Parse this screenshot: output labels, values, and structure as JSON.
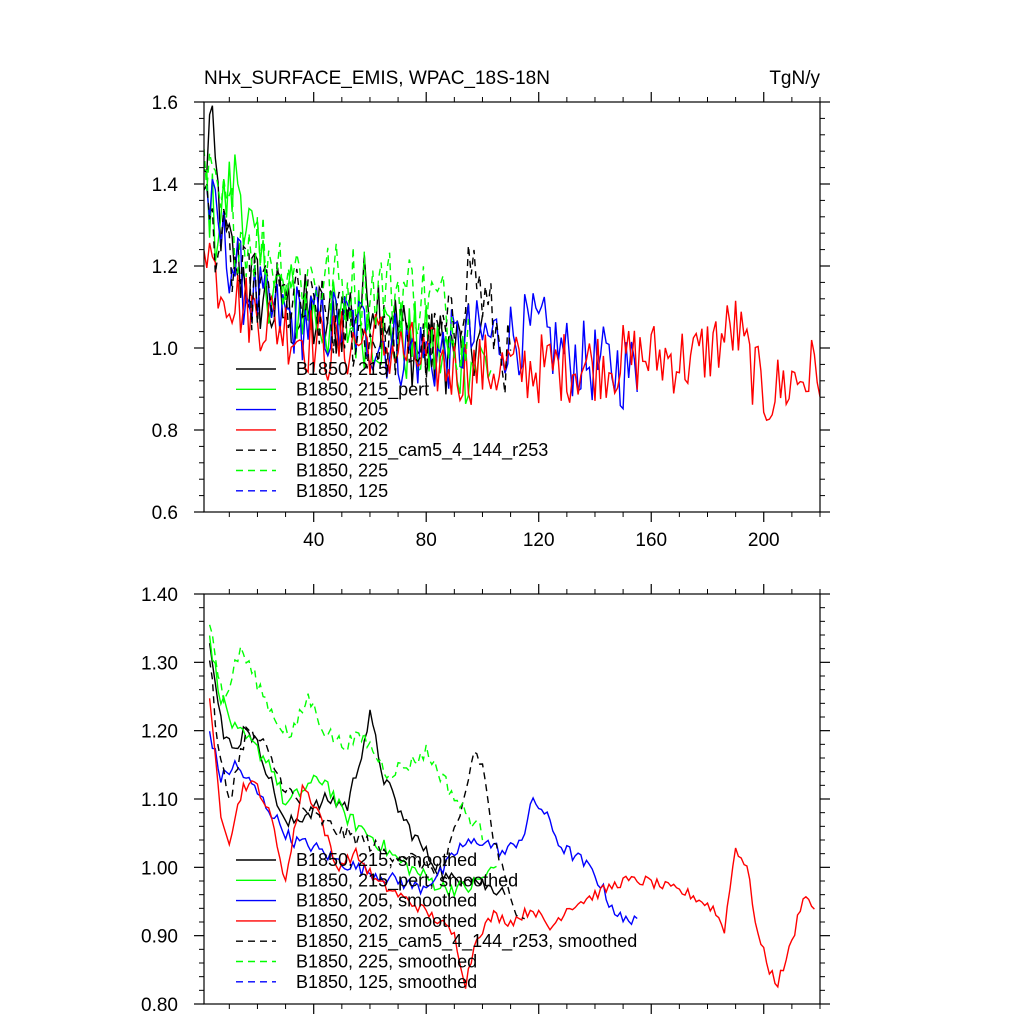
{
  "colors": {
    "black": "#000000",
    "green": "#00ff00",
    "blue": "#0000ff",
    "red": "#ff0000"
  },
  "chart_data": [
    {
      "type": "line",
      "title": "NHx_SURFACE_EMIS, WPAC_18S-18N",
      "units": "TgN/y",
      "xlabel": "",
      "ylabel": "",
      "xlim": [
        1,
        220
      ],
      "ylim": [
        0.6,
        1.6
      ],
      "x_ticks": [
        40,
        80,
        120,
        160,
        200
      ],
      "x_tick_labels": [
        "40",
        "80",
        "120",
        "160",
        "200"
      ],
      "y_ticks": [
        0.6,
        0.8,
        1.0,
        1.2,
        1.4,
        1.6
      ],
      "y_tick_labels": [
        "0.6",
        "0.8",
        "1.0",
        "1.2",
        "1.4",
        "1.6"
      ],
      "legend_position": "bottom-left",
      "series": [
        {
          "name": "B1850, 215",
          "color": "black",
          "dash": "solid",
          "length": 100,
          "anchors": [
            [
              1,
              1.4
            ],
            [
              3,
              1.54
            ],
            [
              8,
              1.25
            ],
            [
              15,
              1.18
            ],
            [
              25,
              1.1
            ],
            [
              35,
              1.08
            ],
            [
              45,
              1.06
            ],
            [
              55,
              1.1
            ],
            [
              60,
              1.15
            ],
            [
              70,
              1.04
            ],
            [
              80,
              0.98
            ],
            [
              90,
              1.0
            ],
            [
              100,
              1.0
            ]
          ],
          "noise": 0.11
        },
        {
          "name": "B1850, 215_pert",
          "color": "green",
          "dash": "solid",
          "length": 103,
          "anchors": [
            [
              1,
              1.42
            ],
            [
              5,
              1.3
            ],
            [
              13,
              1.42
            ],
            [
              20,
              1.2
            ],
            [
              30,
              1.12
            ],
            [
              40,
              1.08
            ],
            [
              50,
              1.05
            ],
            [
              60,
              1.06
            ],
            [
              70,
              1.02
            ],
            [
              80,
              1.0
            ],
            [
              90,
              0.97
            ],
            [
              103,
              0.96
            ]
          ],
          "noise": 0.11
        },
        {
          "name": "B1850, 205",
          "color": "blue",
          "dash": "solid",
          "length": 155,
          "anchors": [
            [
              1,
              1.4
            ],
            [
              5,
              1.3
            ],
            [
              15,
              1.15
            ],
            [
              25,
              1.08
            ],
            [
              40,
              1.06
            ],
            [
              55,
              1.05
            ],
            [
              70,
              1.0
            ],
            [
              85,
              0.98
            ],
            [
              95,
              1.02
            ],
            [
              110,
              1.03
            ],
            [
              120,
              1.04
            ],
            [
              130,
              0.98
            ],
            [
              140,
              0.96
            ],
            [
              155,
              0.94
            ]
          ],
          "noise": 0.1
        },
        {
          "name": "B1850, 202",
          "color": "red",
          "dash": "solid",
          "length": 220,
          "anchors": [
            [
              1,
              1.3
            ],
            [
              5,
              1.18
            ],
            [
              15,
              1.1
            ],
            [
              30,
              1.05
            ],
            [
              45,
              1.0
            ],
            [
              60,
              1.02
            ],
            [
              75,
              0.98
            ],
            [
              90,
              0.95
            ],
            [
              105,
              0.95
            ],
            [
              120,
              0.95
            ],
            [
              140,
              0.96
            ],
            [
              160,
              0.98
            ],
            [
              175,
              0.97
            ],
            [
              190,
              1.05
            ],
            [
              200,
              0.88
            ],
            [
              210,
              0.92
            ],
            [
              220,
              0.95
            ]
          ],
          "noise": 0.09
        },
        {
          "name": "B1850, 215_cam5_4_144_r253",
          "color": "black",
          "dash": "dashed",
          "length": 110,
          "anchors": [
            [
              1,
              1.35
            ],
            [
              5,
              1.28
            ],
            [
              15,
              1.15
            ],
            [
              25,
              1.12
            ],
            [
              35,
              1.1
            ],
            [
              50,
              1.05
            ],
            [
              65,
              1.02
            ],
            [
              80,
              0.99
            ],
            [
              90,
              1.05
            ],
            [
              96,
              1.22
            ],
            [
              100,
              1.12
            ],
            [
              110,
              0.95
            ]
          ],
          "noise": 0.1
        },
        {
          "name": "B1850, 225",
          "color": "green",
          "dash": "dashed",
          "length": 95,
          "anchors": [
            [
              1,
              1.42
            ],
            [
              5,
              1.35
            ],
            [
              15,
              1.28
            ],
            [
              30,
              1.2
            ],
            [
              45,
              1.16
            ],
            [
              60,
              1.15
            ],
            [
              75,
              1.14
            ],
            [
              85,
              1.1
            ],
            [
              95,
              1.02
            ]
          ],
          "noise": 0.11
        },
        {
          "name": "B1850, 125",
          "color": "blue",
          "dash": "dashed",
          "length": 0,
          "anchors": [],
          "noise": 0
        }
      ]
    },
    {
      "type": "line",
      "title": "",
      "xlabel": "",
      "ylabel": "",
      "xlim": [
        1,
        220
      ],
      "ylim": [
        0.8,
        1.4
      ],
      "x_ticks": [
        40,
        80,
        120,
        160,
        200
      ],
      "x_tick_labels": [],
      "y_ticks": [
        0.8,
        0.9,
        1.0,
        1.1,
        1.2,
        1.3,
        1.4
      ],
      "y_tick_labels": [
        "0.80",
        "0.90",
        "1.00",
        "1.10",
        "1.20",
        "1.30",
        "1.40"
      ],
      "legend_position": "bottom-left",
      "series": [
        {
          "name": "B1850, 215, smoothed",
          "color": "black",
          "dash": "solid",
          "length": 108,
          "anchors": [
            [
              3,
              1.34
            ],
            [
              8,
              1.19
            ],
            [
              12,
              1.17
            ],
            [
              16,
              1.21
            ],
            [
              22,
              1.16
            ],
            [
              30,
              1.06
            ],
            [
              38,
              1.08
            ],
            [
              45,
              1.1
            ],
            [
              52,
              1.09
            ],
            [
              57,
              1.17
            ],
            [
              60,
              1.22
            ],
            [
              65,
              1.13
            ],
            [
              72,
              1.07
            ],
            [
              80,
              1.02
            ],
            [
              88,
              0.98
            ],
            [
              95,
              0.99
            ],
            [
              102,
              0.97
            ],
            [
              108,
              0.97
            ]
          ],
          "noise": 0.012
        },
        {
          "name": "B1850, 215_pert, smoothed",
          "color": "green",
          "dash": "solid",
          "length": 105,
          "anchors": [
            [
              3,
              1.33
            ],
            [
              7,
              1.25
            ],
            [
              12,
              1.2
            ],
            [
              18,
              1.18
            ],
            [
              25,
              1.15
            ],
            [
              30,
              1.09
            ],
            [
              38,
              1.12
            ],
            [
              44,
              1.13
            ],
            [
              50,
              1.08
            ],
            [
              56,
              1.06
            ],
            [
              62,
              1.04
            ],
            [
              70,
              1.01
            ],
            [
              78,
              0.99
            ],
            [
              86,
              0.97
            ],
            [
              95,
              0.97
            ],
            [
              105,
              1.0
            ]
          ],
          "noise": 0.012
        },
        {
          "name": "B1850, 205, smoothed",
          "color": "blue",
          "dash": "solid",
          "length": 155,
          "anchors": [
            [
              3,
              1.2
            ],
            [
              7,
              1.13
            ],
            [
              12,
              1.15
            ],
            [
              18,
              1.12
            ],
            [
              25,
              1.08
            ],
            [
              32,
              1.04
            ],
            [
              40,
              1.03
            ],
            [
              48,
              1.01
            ],
            [
              55,
              1.0
            ],
            [
              62,
              0.99
            ],
            [
              70,
              0.98
            ],
            [
              78,
              0.97
            ],
            [
              85,
              0.99
            ],
            [
              92,
              1.03
            ],
            [
              100,
              1.04
            ],
            [
              108,
              1.02
            ],
            [
              115,
              1.05
            ],
            [
              118,
              1.1
            ],
            [
              122,
              1.08
            ],
            [
              128,
              1.03
            ],
            [
              135,
              1.01
            ],
            [
              140,
              0.99
            ],
            [
              145,
              0.95
            ],
            [
              150,
              0.92
            ],
            [
              155,
              0.93
            ]
          ],
          "noise": 0.01
        },
        {
          "name": "B1850, 202, smoothed",
          "color": "red",
          "dash": "solid",
          "length": 218,
          "anchors": [
            [
              3,
              1.24
            ],
            [
              7,
              1.08
            ],
            [
              10,
              1.04
            ],
            [
              15,
              1.12
            ],
            [
              20,
              1.12
            ],
            [
              25,
              1.07
            ],
            [
              30,
              0.98
            ],
            [
              36,
              1.12
            ],
            [
              42,
              1.08
            ],
            [
              48,
              1.0
            ],
            [
              55,
              1.02
            ],
            [
              62,
              0.98
            ],
            [
              70,
              0.96
            ],
            [
              78,
              0.94
            ],
            [
              85,
              0.92
            ],
            [
              90,
              0.9
            ],
            [
              94,
              0.83
            ],
            [
              98,
              0.9
            ],
            [
              104,
              0.93
            ],
            [
              110,
              0.92
            ],
            [
              118,
              0.94
            ],
            [
              124,
              0.91
            ],
            [
              130,
              0.94
            ],
            [
              140,
              0.96
            ],
            [
              150,
              0.98
            ],
            [
              158,
              0.98
            ],
            [
              166,
              0.97
            ],
            [
              174,
              0.96
            ],
            [
              182,
              0.94
            ],
            [
              186,
              0.91
            ],
            [
              190,
              1.03
            ],
            [
              194,
              1.0
            ],
            [
              198,
              0.9
            ],
            [
              202,
              0.85
            ],
            [
              205,
              0.83
            ],
            [
              210,
              0.89
            ],
            [
              214,
              0.96
            ],
            [
              218,
              0.94
            ]
          ],
          "noise": 0.008
        },
        {
          "name": "B1850, 215_cam5_4_144_r253, smoothed",
          "color": "black",
          "dash": "dashed",
          "length": 115,
          "anchors": [
            [
              3,
              1.31
            ],
            [
              6,
              1.17
            ],
            [
              10,
              1.1
            ],
            [
              16,
              1.2
            ],
            [
              22,
              1.18
            ],
            [
              28,
              1.13
            ],
            [
              35,
              1.09
            ],
            [
              42,
              1.07
            ],
            [
              50,
              1.05
            ],
            [
              58,
              1.04
            ],
            [
              65,
              1.02
            ],
            [
              72,
              1.02
            ],
            [
              80,
              1.0
            ],
            [
              86,
              1.0
            ],
            [
              92,
              1.07
            ],
            [
              97,
              1.17
            ],
            [
              100,
              1.15
            ],
            [
              104,
              1.04
            ],
            [
              110,
              0.95
            ],
            [
              115,
              0.93
            ]
          ],
          "noise": 0.012
        },
        {
          "name": "B1850, 225, smoothed",
          "color": "green",
          "dash": "dashed",
          "length": 100,
          "anchors": [
            [
              3,
              1.36
            ],
            [
              8,
              1.24
            ],
            [
              14,
              1.32
            ],
            [
              20,
              1.27
            ],
            [
              26,
              1.22
            ],
            [
              32,
              1.19
            ],
            [
              38,
              1.25
            ],
            [
              44,
              1.2
            ],
            [
              50,
              1.18
            ],
            [
              58,
              1.19
            ],
            [
              66,
              1.14
            ],
            [
              74,
              1.15
            ],
            [
              80,
              1.17
            ],
            [
              86,
              1.13
            ],
            [
              92,
              1.09
            ],
            [
              100,
              1.05
            ]
          ],
          "noise": 0.012
        },
        {
          "name": "B1850, 125, smoothed",
          "color": "blue",
          "dash": "dashed",
          "length": 0,
          "anchors": [],
          "noise": 0
        }
      ]
    }
  ]
}
